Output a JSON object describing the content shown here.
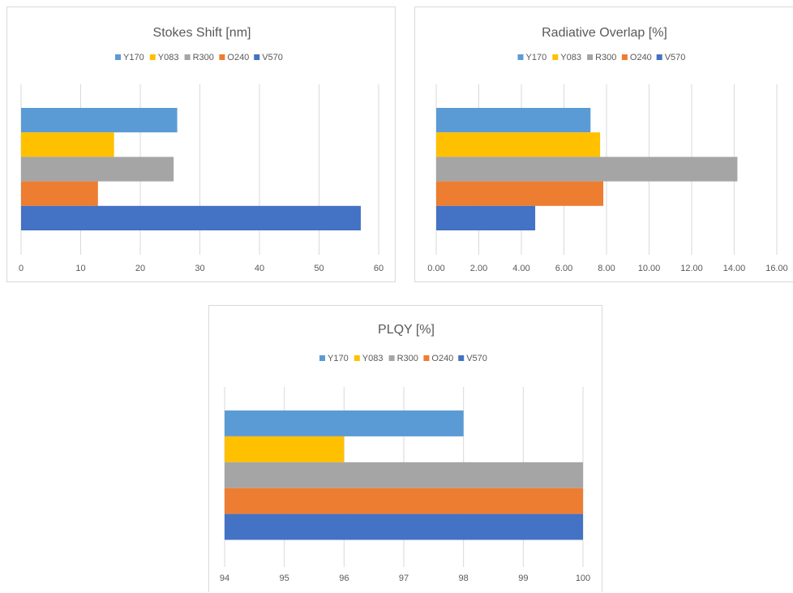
{
  "chart_data": [
    {
      "id": "stokes",
      "type": "bar",
      "orientation": "horizontal",
      "title": "Stokes Shift [nm]",
      "categories": [
        "Y170",
        "Y083",
        "R300",
        "O240",
        "V570"
      ],
      "values": [
        26.2,
        15.6,
        25.6,
        12.9,
        57.0
      ],
      "colors": [
        "#5b9bd5",
        "#ffc000",
        "#a5a5a5",
        "#ed7d31",
        "#4472c4"
      ],
      "xlim": [
        0,
        60
      ],
      "ticks": [
        0,
        10,
        20,
        30,
        40,
        50,
        60
      ],
      "tick_labels": [
        "0",
        "10",
        "20",
        "30",
        "40",
        "50",
        "60"
      ],
      "grid": true,
      "legend": "top"
    },
    {
      "id": "overlap",
      "type": "bar",
      "orientation": "horizontal",
      "title": "Radiative Overlap [%]",
      "categories": [
        "Y170",
        "Y083",
        "R300",
        "O240",
        "V570"
      ],
      "values": [
        7.25,
        7.7,
        14.15,
        7.85,
        4.65
      ],
      "colors": [
        "#5b9bd5",
        "#ffc000",
        "#a5a5a5",
        "#ed7d31",
        "#4472c4"
      ],
      "xlim": [
        0,
        16
      ],
      "ticks": [
        0,
        2,
        4,
        6,
        8,
        10,
        12,
        14,
        16
      ],
      "tick_labels": [
        "0.00",
        "2.00",
        "4.00",
        "6.00",
        "8.00",
        "10.00",
        "12.00",
        "14.00",
        "16.00"
      ],
      "grid": true,
      "legend": "top"
    },
    {
      "id": "plqy",
      "type": "bar",
      "orientation": "horizontal",
      "title": "PLQY [%]",
      "categories": [
        "Y170",
        "Y083",
        "R300",
        "O240",
        "V570"
      ],
      "values": [
        98,
        96,
        100,
        100,
        100
      ],
      "colors": [
        "#5b9bd5",
        "#ffc000",
        "#a5a5a5",
        "#ed7d31",
        "#4472c4"
      ],
      "xlim": [
        94,
        100
      ],
      "ticks": [
        94,
        95,
        96,
        97,
        98,
        99,
        100
      ],
      "tick_labels": [
        "94",
        "95",
        "96",
        "97",
        "98",
        "99",
        "100"
      ],
      "grid": true,
      "legend": "top"
    }
  ]
}
